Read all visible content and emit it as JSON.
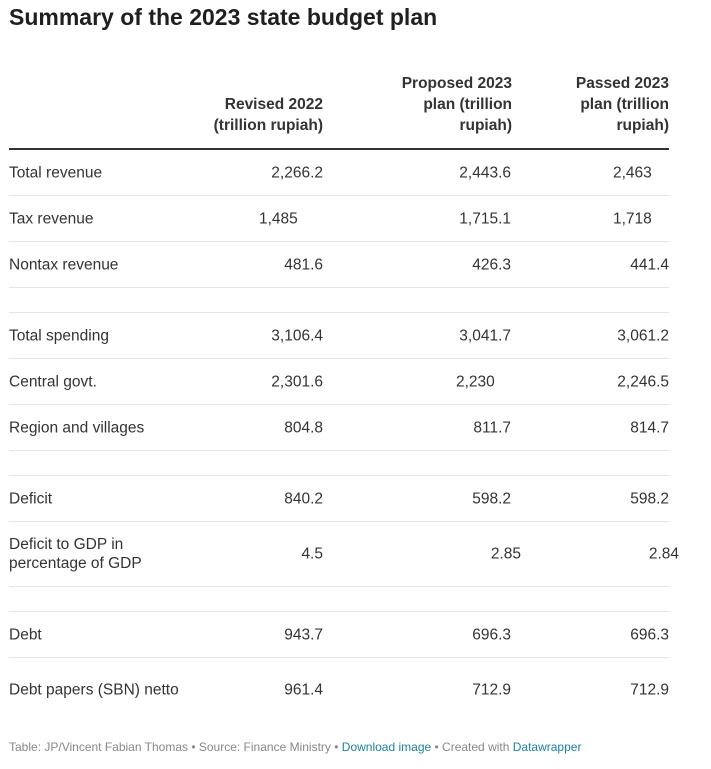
{
  "title": "Summary of the 2023 state budget plan",
  "columns": [
    {
      "line1": "Revised 2022",
      "line2": "(trillion rupiah)",
      "line3": ""
    },
    {
      "line1": "Proposed 2023",
      "line2": "plan (trillion",
      "line3": "rupiah)"
    },
    {
      "line1": "Passed 2023",
      "line2": "plan (trillion",
      "line3": "rupiah)"
    }
  ],
  "chart_data": {
    "type": "table",
    "title": "Summary of the 2023 state budget plan",
    "columns": [
      "Revised 2022 (trillion rupiah)",
      "Proposed 2023 plan (trillion rupiah)",
      "Passed 2023 plan (trillion rupiah)"
    ],
    "rows": [
      {
        "label": "Total revenue",
        "values": [
          "2,266.2",
          "2,443.6",
          "2,463"
        ]
      },
      {
        "label": "Tax revenue",
        "values": [
          "1,485",
          "1,715.1",
          "1,718"
        ]
      },
      {
        "label": "Nontax revenue",
        "values": [
          "481.6",
          "426.3",
          "441.4"
        ]
      },
      {
        "label": "Total spending",
        "values": [
          "3,106.4",
          "3,041.7",
          "3,061.2"
        ]
      },
      {
        "label": "Central govt.",
        "values": [
          "2,301.6",
          "2,230",
          "2,246.5"
        ]
      },
      {
        "label": "Region and villages",
        "values": [
          "804.8",
          "811.7",
          "814.7"
        ]
      },
      {
        "label": "Deficit",
        "values": [
          "840.2",
          "598.2",
          "598.2"
        ]
      },
      {
        "label": "Deficit to GDP in percentage of GDP",
        "values": [
          "4.5",
          "2.85",
          "2.84"
        ]
      },
      {
        "label": "Debt",
        "values": [
          "943.7",
          "696.3",
          "696.3"
        ]
      },
      {
        "label": "Debt papers (SBN) netto",
        "values": [
          "961.4",
          "712.9",
          "712.9"
        ]
      }
    ]
  },
  "footer": {
    "credit": "Table: JP/Vincent Fabian Thomas • Source: Finance Ministry • ",
    "download": "Download image",
    "created": " • Created with ",
    "tool": "Datawrapper"
  },
  "colors": {
    "text": "#333333",
    "title": "#1f1f1f",
    "link": "#1d81a2",
    "rule": "#e6e6e6"
  }
}
